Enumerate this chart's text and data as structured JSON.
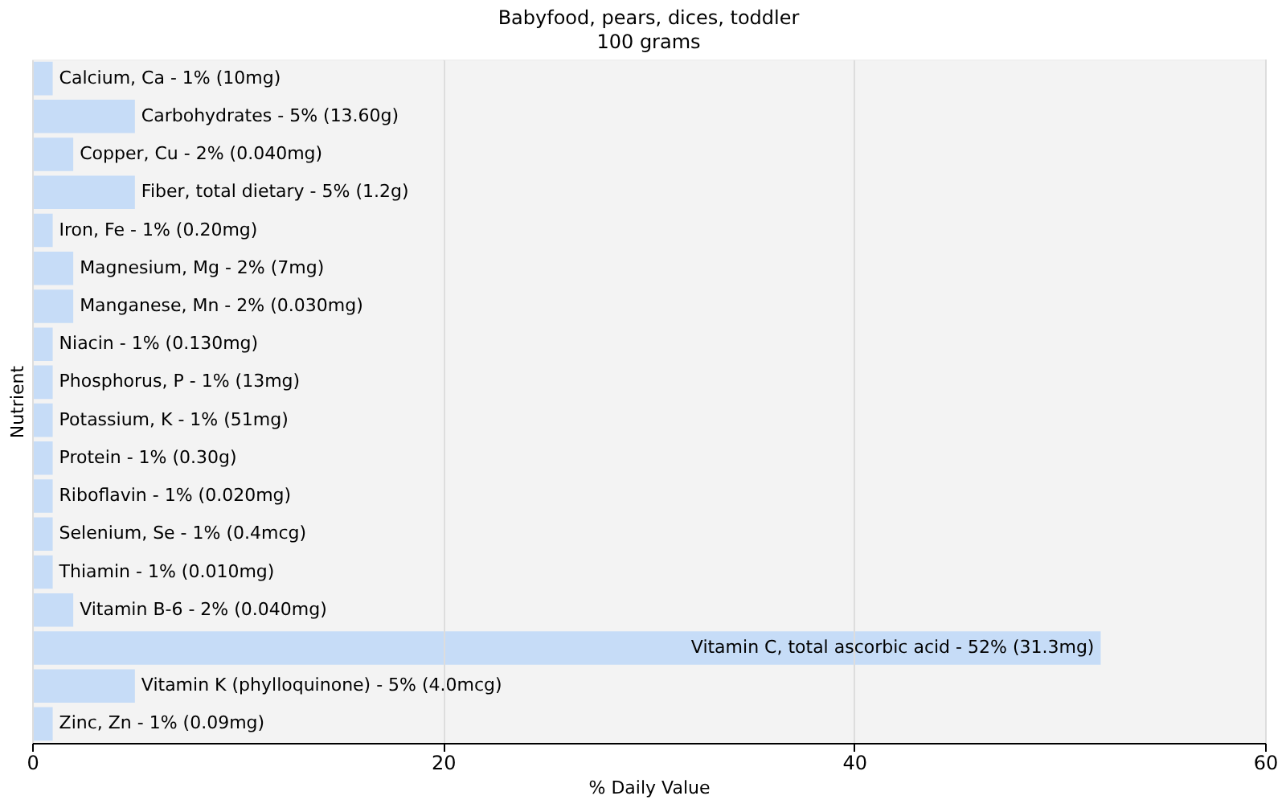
{
  "chart_data": {
    "type": "bar",
    "orientation": "horizontal",
    "title": "Babyfood, pears, dices, toddler",
    "subtitle": "100 grams",
    "xlabel": "% Daily Value",
    "ylabel": "Nutrient",
    "categories": [
      "Calcium, Ca - 1% (10mg)",
      "Carbohydrates - 5% (13.60g)",
      "Copper, Cu - 2% (0.040mg)",
      "Fiber, total dietary - 5% (1.2g)",
      "Iron, Fe - 1% (0.20mg)",
      "Magnesium, Mg - 2% (7mg)",
      "Manganese, Mn - 2% (0.030mg)",
      "Niacin - 1% (0.130mg)",
      "Phosphorus, P - 1% (13mg)",
      "Potassium, K - 1% (51mg)",
      "Protein - 1% (0.30g)",
      "Riboflavin - 1% (0.020mg)",
      "Selenium, Se - 1% (0.4mcg)",
      "Thiamin - 1% (0.010mg)",
      "Vitamin B-6 - 2% (0.040mg)",
      "Vitamin C, total ascorbic acid - 52% (31.3mg)",
      "Vitamin K (phylloquinone) - 5% (4.0mcg)",
      "Zinc, Zn - 1% (0.09mg)"
    ],
    "values": [
      1,
      5,
      2,
      5,
      1,
      2,
      2,
      1,
      1,
      1,
      1,
      1,
      1,
      1,
      2,
      52,
      5,
      1
    ],
    "color": "#c6dcf7",
    "xlim": [
      0,
      60
    ],
    "xticks": [
      0,
      20,
      40,
      60
    ],
    "grid": "x",
    "tick_labels": "x"
  }
}
